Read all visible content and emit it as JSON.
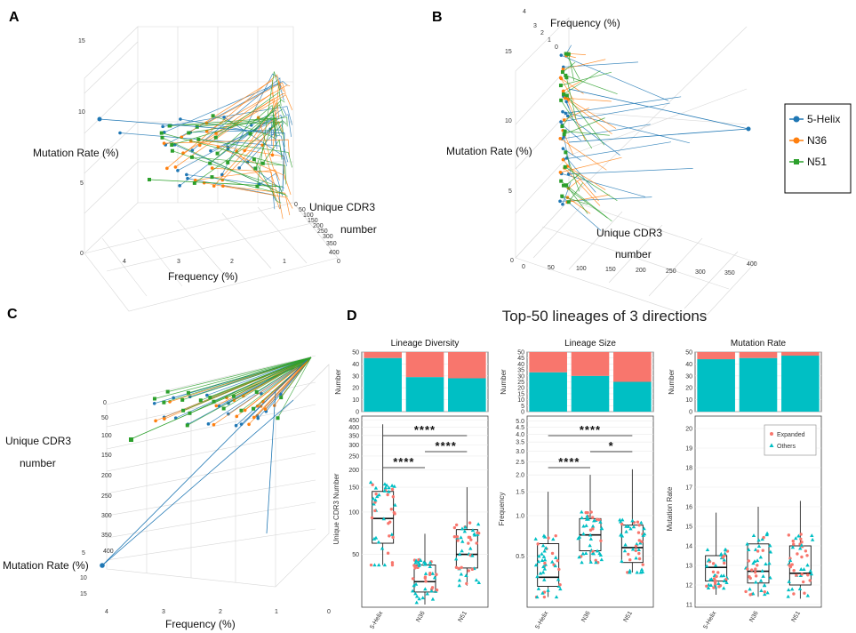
{
  "panel_labels": [
    "A",
    "B",
    "C",
    "D"
  ],
  "legend": {
    "items": [
      {
        "name": "5-Helix",
        "color": "#1f77b4",
        "marker": "circle"
      },
      {
        "name": "N36",
        "color": "#ff7f0e",
        "marker": "circle"
      },
      {
        "name": "N51",
        "color": "#2ca02c",
        "marker": "square"
      }
    ]
  },
  "panel_a": {
    "ylabel": "Mutation Rate (%)",
    "xlabel": "Frequency (%)",
    "zlabel_1": "Unique CDR3",
    "zlabel_2": "number",
    "y_ticks": [
      "15",
      "10",
      "5",
      "0"
    ],
    "x_ticks": [
      "4",
      "3",
      "2",
      "1",
      "0"
    ],
    "z_ticks": [
      "0",
      "50",
      "100",
      "150",
      "200",
      "250",
      "300",
      "350",
      "400"
    ]
  },
  "panel_b": {
    "top_label": "Frequency (%)",
    "ylabel": "Mutation Rate (%)",
    "zlabel_1": "Unique CDR3",
    "zlabel_2": "number",
    "freq_ticks": [
      "4",
      "3",
      "2",
      "1",
      "0"
    ],
    "y_ticks": [
      "15",
      "10",
      "5",
      "0"
    ],
    "z_ticks": [
      "0",
      "50",
      "100",
      "150",
      "200",
      "250",
      "300",
      "350",
      "400"
    ]
  },
  "panel_c": {
    "zlabel_1": "Unique CDR3",
    "zlabel_2": "number",
    "ylabel": "Mutation Rate (%)",
    "xlabel": "Frequency (%)",
    "z_ticks": [
      "0",
      "50",
      "100",
      "150",
      "200",
      "250",
      "300",
      "350",
      "400"
    ],
    "y_ticks": [
      "5",
      "10",
      "15"
    ],
    "x_ticks": [
      "4",
      "3",
      "2",
      "1",
      "0"
    ]
  },
  "panel_d_title": "Top-50 lineages of 3 directions",
  "colors": {
    "expanded": "#f8766d",
    "others": "#00bfc4"
  },
  "chart_data": [
    {
      "type": "bar",
      "title": "Lineage Diversity",
      "ylabel": "Number",
      "categories": [
        "5-Helix",
        "N36",
        "N51"
      ],
      "series": [
        {
          "name": "Others",
          "values": [
            45,
            29,
            28
          ]
        },
        {
          "name": "Expanded",
          "values": [
            5,
            21,
            22
          ]
        }
      ],
      "ylim": [
        0,
        50
      ],
      "ytick_labels": [
        "0",
        "10",
        "20",
        "30",
        "40",
        "50"
      ]
    },
    {
      "type": "bar",
      "title": "Lineage Size",
      "ylabel": "Number",
      "categories": [
        "5-Helix",
        "N36",
        "N51"
      ],
      "series": [
        {
          "name": "Others",
          "values": [
            33,
            30,
            25
          ]
        },
        {
          "name": "Expanded",
          "values": [
            17,
            20,
            25
          ]
        }
      ],
      "ylim": [
        0,
        50
      ],
      "ytick_labels": [
        "0",
        "5",
        "10",
        "15",
        "20",
        "25",
        "30",
        "35",
        "40",
        "45",
        "50"
      ]
    },
    {
      "type": "bar",
      "title": "Mutation Rate",
      "ylabel": "Number",
      "categories": [
        "5-Helix",
        "N36",
        "N51"
      ],
      "series": [
        {
          "name": "Others",
          "values": [
            44,
            45,
            47
          ]
        },
        {
          "name": "Expanded",
          "values": [
            6,
            5,
            3
          ]
        }
      ],
      "ylim": [
        0,
        50
      ],
      "ytick_labels": [
        "0",
        "10",
        "20",
        "30",
        "40",
        "50"
      ]
    },
    {
      "type": "box",
      "ylabel": "Unique CDR3 Number",
      "scale": "log",
      "categories": [
        "5-Helix",
        "N36",
        "N51"
      ],
      "boxes": [
        {
          "q1": 60,
          "median": 90,
          "q3": 140,
          "lo": 42,
          "hi": 420
        },
        {
          "q1": 27,
          "median": 32,
          "q3": 42,
          "lo": 22,
          "hi": 70
        },
        {
          "q1": 40,
          "median": 50,
          "q3": 75,
          "lo": 30,
          "hi": 150
        }
      ],
      "ytick_labels": [
        "50",
        "100",
        "150",
        "200",
        "250",
        "300",
        "350",
        "400",
        "450"
      ],
      "ytick_values": [
        50,
        100,
        150,
        200,
        250,
        300,
        350,
        400,
        450
      ],
      "ylim": [
        22,
        460
      ],
      "significance": [
        {
          "label": "****",
          "from": "5-Helix",
          "to": "N51"
        },
        {
          "label": "****",
          "from": "5-Helix",
          "to": "N36"
        },
        {
          "label": "****",
          "from": "N36",
          "to": "N51"
        }
      ]
    },
    {
      "type": "box",
      "ylabel": "Frequency",
      "scale": "log",
      "categories": [
        "5-Helix",
        "N36",
        "N51"
      ],
      "boxes": [
        {
          "q1": 0.3,
          "median": 0.35,
          "q3": 0.62,
          "lo": 0.25,
          "hi": 1.5
        },
        {
          "q1": 0.55,
          "median": 0.72,
          "q3": 0.95,
          "lo": 0.45,
          "hi": 2.0
        },
        {
          "q1": 0.45,
          "median": 0.58,
          "q3": 0.85,
          "lo": 0.38,
          "hi": 2.2
        }
      ],
      "ytick_labels": [
        "0.5",
        "1.0",
        "1.5",
        "2.0",
        "2.5",
        "3.0",
        "3.5",
        "4.0",
        "4.5",
        "5.0"
      ],
      "ytick_values": [
        0.5,
        1.0,
        1.5,
        2.0,
        2.5,
        3.0,
        3.5,
        4.0,
        4.5,
        5.0
      ],
      "ylim": [
        0.22,
        5.2
      ],
      "significance": [
        {
          "label": "****",
          "from": "5-Helix",
          "to": "N51"
        },
        {
          "label": "****",
          "from": "5-Helix",
          "to": "N36"
        },
        {
          "label": "*",
          "from": "N36",
          "to": "N51"
        }
      ]
    },
    {
      "type": "box",
      "ylabel": "Mutation Rate",
      "scale": "linear",
      "categories": [
        "5-Helix",
        "N36",
        "N51"
      ],
      "boxes": [
        {
          "q1": 12.2,
          "median": 12.9,
          "q3": 13.5,
          "lo": 11.5,
          "hi": 15.7
        },
        {
          "q1": 12.1,
          "median": 12.7,
          "q3": 14.1,
          "lo": 11.4,
          "hi": 16.0
        },
        {
          "q1": 12.0,
          "median": 12.6,
          "q3": 14.0,
          "lo": 11.3,
          "hi": 16.3
        }
      ],
      "ytick_labels": [
        "11",
        "12",
        "13",
        "14",
        "15",
        "16",
        "17",
        "18",
        "19",
        "20"
      ],
      "ytick_values": [
        11,
        12,
        13,
        14,
        15,
        16,
        17,
        18,
        19,
        20
      ],
      "ylim": [
        11,
        20.5
      ],
      "legend": [
        "Expanded",
        "Others"
      ]
    }
  ]
}
